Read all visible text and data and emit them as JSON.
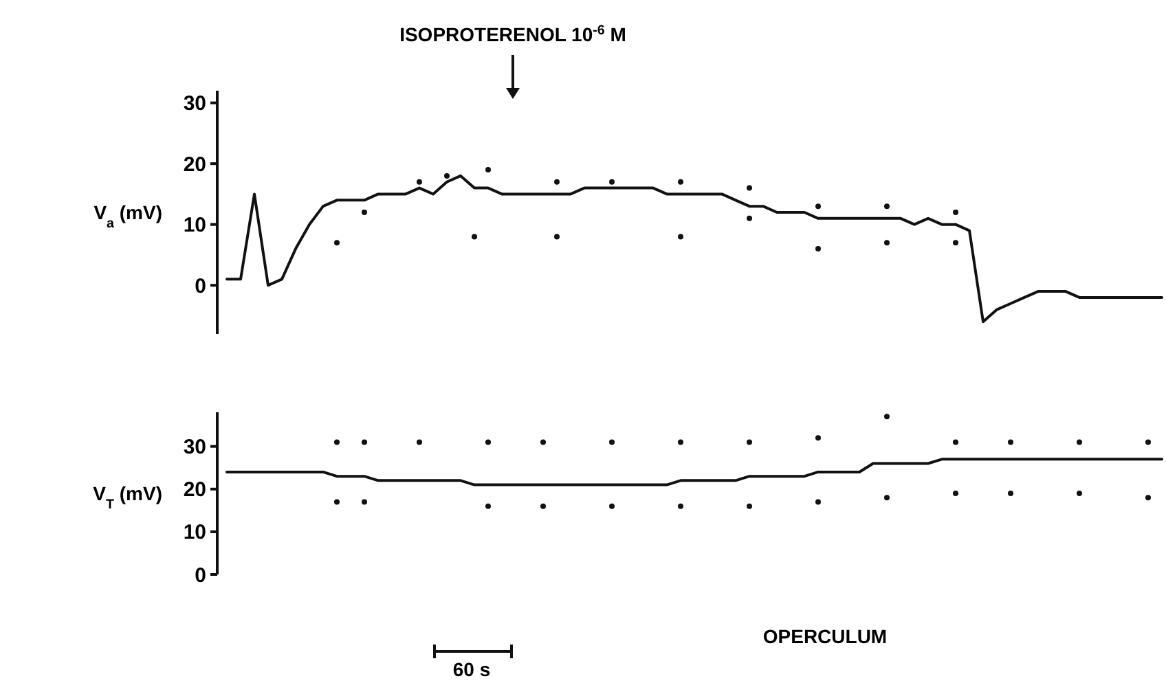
{
  "chart_data": [
    {
      "type": "line",
      "ylabel": "V$_{a}$ (mV)",
      "tick_labels": "y",
      "ylim": [
        -8,
        32
      ],
      "yticks": [
        0,
        10,
        20,
        30
      ],
      "annotations": [
        "ISOPROTERENOL 10$^{-6}$ M"
      ],
      "categories": [
        null,
        null,
        null,
        null,
        null,
        null,
        null,
        null,
        null,
        null,
        null,
        null,
        null,
        null,
        null,
        null,
        null,
        null,
        null,
        null,
        null,
        null,
        null,
        null,
        null,
        null,
        null,
        null,
        null,
        null,
        null,
        null,
        null,
        null,
        null,
        null,
        null,
        null,
        null,
        null,
        null,
        null,
        null,
        null,
        null,
        null,
        null,
        null,
        null,
        null,
        null,
        null,
        null,
        null,
        null,
        null,
        null,
        null,
        null,
        null,
        null,
        null,
        null,
        null,
        null,
        null,
        null,
        null,
        null
      ],
      "series": [
        {
          "color": "#111111",
          "values": [
            1,
            1,
            15,
            0,
            1,
            6,
            10,
            13,
            14,
            14,
            14,
            15,
            15,
            15,
            16,
            15,
            17,
            18,
            16,
            16,
            15,
            15,
            15,
            15,
            15,
            15,
            16,
            16,
            16,
            16,
            16,
            16,
            15,
            15,
            15,
            15,
            15,
            14,
            13,
            13,
            12,
            12,
            12,
            11,
            11,
            11,
            11,
            11,
            11,
            11,
            10,
            11,
            10,
            10,
            9,
            -6,
            -4,
            -3,
            -2,
            -1,
            -1,
            -1,
            -2,
            -2,
            -2,
            -2,
            -2,
            -2,
            -2
          ]
        },
        {
          "type": "scatter",
          "marker": "circle",
          "color": "#111111",
          "values": [
            null,
            null,
            null,
            null,
            null,
            null,
            null,
            null,
            null,
            null,
            12,
            null,
            null,
            null,
            17,
            null,
            18,
            null,
            null,
            19,
            null,
            null,
            null,
            null,
            17,
            null,
            null,
            null,
            17,
            null,
            null,
            null,
            null,
            17,
            null,
            null,
            null,
            null,
            16,
            null,
            null,
            null,
            null,
            13,
            null,
            null,
            null,
            null,
            13,
            null,
            null,
            null,
            null,
            12,
            null,
            null,
            null,
            null,
            null,
            null,
            null,
            null,
            null,
            null,
            null,
            null,
            null,
            null,
            null
          ]
        },
        {
          "type": "scatter",
          "marker": "circle",
          "color": "#111111",
          "values": [
            null,
            null,
            null,
            null,
            null,
            null,
            null,
            null,
            7,
            null,
            null,
            null,
            null,
            null,
            null,
            null,
            null,
            null,
            8,
            null,
            null,
            null,
            null,
            null,
            8,
            null,
            null,
            null,
            null,
            null,
            null,
            null,
            null,
            8,
            null,
            null,
            null,
            null,
            11,
            null,
            null,
            null,
            null,
            6,
            null,
            null,
            null,
            null,
            7,
            null,
            null,
            null,
            null,
            7,
            null,
            null,
            null,
            null,
            null,
            null,
            null,
            null,
            null,
            null,
            null,
            null,
            null,
            null,
            null
          ]
        }
      ]
    },
    {
      "type": "line",
      "ylabel": "V$_{T}$ (mV)",
      "tick_labels": "y",
      "ylim": [
        0,
        38
      ],
      "yticks": [
        0,
        10,
        20,
        30
      ],
      "annotations": [
        "OPERCULUM",
        "60 s"
      ],
      "categories": [
        null,
        null,
        null,
        null,
        null,
        null,
        null,
        null,
        null,
        null,
        null,
        null,
        null,
        null,
        null,
        null,
        null,
        null,
        null,
        null,
        null,
        null,
        null,
        null,
        null,
        null,
        null,
        null,
        null,
        null,
        null,
        null,
        null,
        null,
        null,
        null,
        null,
        null,
        null,
        null,
        null,
        null,
        null,
        null,
        null,
        null,
        null,
        null,
        null,
        null,
        null,
        null,
        null,
        null,
        null,
        null,
        null,
        null,
        null,
        null,
        null,
        null,
        null,
        null,
        null,
        null,
        null,
        null,
        null
      ],
      "series": [
        {
          "color": "#111111",
          "values": [
            24,
            24,
            24,
            24,
            24,
            24,
            24,
            24,
            23,
            23,
            23,
            22,
            22,
            22,
            22,
            22,
            22,
            22,
            21,
            21,
            21,
            21,
            21,
            21,
            21,
            21,
            21,
            21,
            21,
            21,
            21,
            21,
            21,
            22,
            22,
            22,
            22,
            22,
            23,
            23,
            23,
            23,
            23,
            24,
            24,
            24,
            24,
            26,
            26,
            26,
            26,
            26,
            27,
            27,
            27,
            27,
            27,
            27,
            27,
            27,
            27,
            27,
            27,
            27,
            27,
            27,
            27,
            27,
            27
          ]
        },
        {
          "type": "scatter",
          "marker": "circle",
          "color": "#111111",
          "values": [
            null,
            null,
            null,
            null,
            null,
            null,
            null,
            null,
            31,
            null,
            31,
            null,
            null,
            null,
            31,
            null,
            null,
            null,
            null,
            31,
            null,
            null,
            null,
            31,
            null,
            null,
            null,
            null,
            31,
            null,
            null,
            null,
            null,
            31,
            null,
            null,
            null,
            null,
            31,
            null,
            null,
            null,
            null,
            32,
            null,
            null,
            null,
            null,
            37,
            null,
            null,
            null,
            null,
            31,
            null,
            null,
            null,
            31,
            null,
            null,
            null,
            null,
            31,
            null,
            null,
            null,
            null,
            31,
            null
          ]
        },
        {
          "type": "scatter",
          "marker": "circle",
          "color": "#111111",
          "values": [
            null,
            null,
            null,
            null,
            null,
            null,
            null,
            null,
            17,
            null,
            17,
            null,
            null,
            null,
            null,
            null,
            null,
            null,
            null,
            16,
            null,
            null,
            null,
            16,
            null,
            null,
            null,
            null,
            16,
            null,
            null,
            null,
            null,
            16,
            null,
            null,
            null,
            null,
            16,
            null,
            null,
            null,
            null,
            17,
            null,
            null,
            null,
            null,
            18,
            null,
            null,
            null,
            null,
            19,
            null,
            null,
            null,
            19,
            null,
            null,
            null,
            null,
            19,
            null,
            null,
            null,
            null,
            18,
            null
          ]
        }
      ]
    }
  ]
}
